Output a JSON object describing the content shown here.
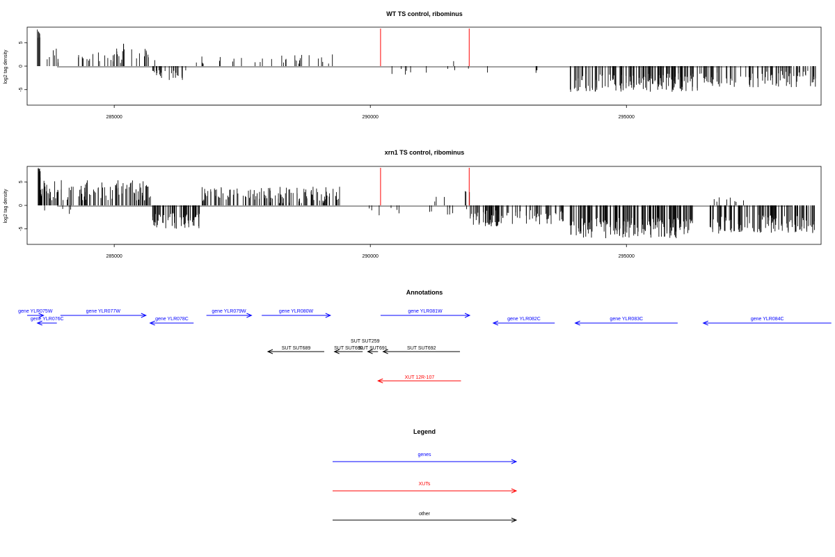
{
  "colors": {
    "genes": "#0000ff",
    "xuts": "#ff0000",
    "other": "#000000",
    "marker": "#ff0000",
    "bars": "#000000"
  },
  "chart_data": [
    {
      "type": "bar",
      "title": "WT TS control, ribominus",
      "ylabel": "log2 tag density",
      "xlim": [
        283300,
        298800
      ],
      "ylim": [
        -8.3,
        8.3
      ],
      "xticks": [
        285000,
        290000,
        295000
      ],
      "xtick_labels": [
        "285000",
        "290000",
        "295000"
      ],
      "yticks": [
        -5,
        0,
        5
      ],
      "ytick_labels": [
        "-5",
        "0",
        "5"
      ],
      "markers": [
        290200,
        291930
      ],
      "regions": [
        {
          "from": 283500,
          "to": 283560,
          "y": [
            5.5,
            8.0
          ],
          "n": 8
        },
        {
          "from": 283560,
          "to": 285800,
          "y": [
            0.5,
            4.0
          ],
          "n": 40
        },
        {
          "from": 285050,
          "to": 285200,
          "y": [
            2.5,
            5.0
          ],
          "n": 5
        },
        {
          "from": 285750,
          "to": 286400,
          "y": [
            -3.0,
            -0.8
          ],
          "n": 25
        },
        {
          "from": 286500,
          "to": 289300,
          "y": [
            0.5,
            2.5
          ],
          "n": 30
        },
        {
          "from": 290300,
          "to": 292300,
          "y": [
            -2.0,
            -0.5
          ],
          "n": 10
        },
        {
          "from": 291600,
          "to": 291650,
          "y": [
            1.0,
            1.5
          ],
          "n": 1
        },
        {
          "from": 293200,
          "to": 293400,
          "y": [
            -1.5,
            -0.5
          ],
          "n": 3
        },
        {
          "from": 293900,
          "to": 296400,
          "y": [
            -5.5,
            -1.5
          ],
          "n": 150
        },
        {
          "from": 296400,
          "to": 298700,
          "y": [
            -4.5,
            -1.0
          ],
          "n": 90
        }
      ]
    },
    {
      "type": "bar",
      "title": "xrn1 TS control, ribominus",
      "ylabel": "log2 tag density",
      "xlim": [
        283300,
        298800
      ],
      "ylim": [
        -8.3,
        8.3
      ],
      "xticks": [
        285000,
        290000,
        295000
      ],
      "xtick_labels": [
        "285000",
        "290000",
        "295000"
      ],
      "yticks": [
        -5,
        0,
        5
      ],
      "ytick_labels": [
        "-5",
        "0",
        "5"
      ],
      "markers": [
        290200,
        291930
      ],
      "regions": [
        {
          "from": 283500,
          "to": 283560,
          "y": [
            5.5,
            8.0
          ],
          "n": 8
        },
        {
          "from": 283560,
          "to": 285750,
          "y": [
            1.0,
            5.5
          ],
          "n": 110
        },
        {
          "from": 283600,
          "to": 284200,
          "y": [
            -2.0,
            -0.5
          ],
          "n": 4
        },
        {
          "from": 285750,
          "to": 286700,
          "y": [
            -5.0,
            -1.5
          ],
          "n": 70
        },
        {
          "from": 286700,
          "to": 289400,
          "y": [
            0.5,
            4.0
          ],
          "n": 120
        },
        {
          "from": 289800,
          "to": 292000,
          "y": [
            -2.5,
            -0.5
          ],
          "n": 14
        },
        {
          "from": 291200,
          "to": 291950,
          "y": [
            0.8,
            3.2
          ],
          "n": 6
        },
        {
          "from": 291950,
          "to": 293800,
          "y": [
            -4.5,
            -1.0
          ],
          "n": 90
        },
        {
          "from": 293900,
          "to": 296300,
          "y": [
            -7.0,
            -2.5
          ],
          "n": 180
        },
        {
          "from": 296600,
          "to": 298700,
          "y": [
            -6.0,
            -2.0
          ],
          "n": 130
        },
        {
          "from": 296700,
          "to": 297300,
          "y": [
            0.5,
            2.0
          ],
          "n": 8
        }
      ]
    }
  ],
  "annotations": {
    "title": "Annotations",
    "features": [
      {
        "label": "gene YLR075W",
        "type": "genes",
        "strand": "+",
        "start": 283300,
        "end": 283620,
        "row": 0
      },
      {
        "label": "gene YLR076C",
        "type": "genes",
        "strand": "-",
        "start": 283500,
        "end": 283880,
        "row": 1
      },
      {
        "label": "gene YLR077W",
        "type": "genes",
        "strand": "+",
        "start": 283950,
        "end": 285620,
        "row": 0
      },
      {
        "label": "gene YLR078C",
        "type": "genes",
        "strand": "-",
        "start": 285700,
        "end": 286550,
        "row": 1
      },
      {
        "label": "gene YLR079W",
        "type": "genes",
        "strand": "+",
        "start": 286800,
        "end": 287680,
        "row": 0
      },
      {
        "label": "gene YLR080W",
        "type": "genes",
        "strand": "+",
        "start": 287880,
        "end": 289220,
        "row": 0
      },
      {
        "label": "gene YLR081W",
        "type": "genes",
        "strand": "+",
        "start": 290200,
        "end": 291940,
        "row": 0
      },
      {
        "label": "gene YLR082C",
        "type": "genes",
        "strand": "-",
        "start": 292400,
        "end": 293600,
        "row": 1
      },
      {
        "label": "gene YLR083C",
        "type": "genes",
        "strand": "-",
        "start": 294000,
        "end": 296000,
        "row": 1
      },
      {
        "label": "gene YLR084C",
        "type": "genes",
        "strand": "-",
        "start": 296500,
        "end": 299000,
        "row": 1
      },
      {
        "label": "SUT SUT259",
        "type": "other",
        "strand": "-",
        "start": 289800,
        "end": 290000,
        "row": 3
      },
      {
        "label": "SUT SUT689",
        "type": "other",
        "strand": "-",
        "start": 288000,
        "end": 289100,
        "row": 4
      },
      {
        "label": "SUT SUT690",
        "type": "other",
        "strand": "-",
        "start": 289300,
        "end": 289850,
        "row": 4
      },
      {
        "label": "SUT SUT691",
        "type": "other",
        "strand": "-",
        "start": 289950,
        "end": 290150,
        "row": 4
      },
      {
        "label": "SUT SUT692",
        "type": "other",
        "strand": "-",
        "start": 290250,
        "end": 291750,
        "row": 4
      },
      {
        "label": "XUT 12R-107",
        "type": "xuts",
        "strand": "-",
        "start": 290150,
        "end": 291770,
        "row": 5
      }
    ]
  },
  "legend": {
    "title": "Legend",
    "items": [
      {
        "label": "genes",
        "type": "genes"
      },
      {
        "label": "XUTs",
        "type": "xuts"
      },
      {
        "label": "other",
        "type": "other"
      }
    ]
  }
}
